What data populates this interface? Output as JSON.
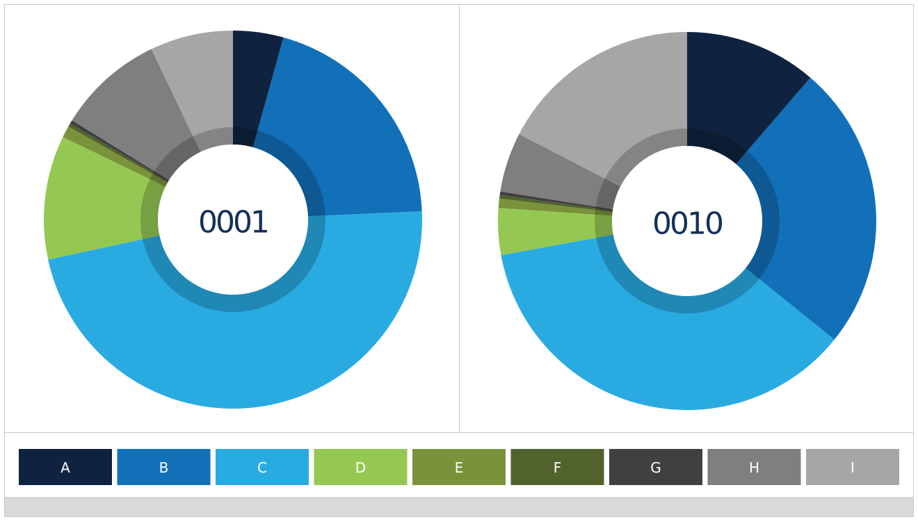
{
  "chart_data": [
    {
      "type": "donut",
      "center_label": "0001",
      "values": [
        4.3,
        20,
        47.3,
        10.6,
        1,
        0.3,
        0.3,
        9.1,
        7.1
      ]
    },
    {
      "type": "donut",
      "center_label": "0010",
      "values": [
        11.3,
        24.5,
        36.3,
        4,
        0.8,
        0.3,
        0.3,
        5.1,
        17.4
      ]
    }
  ],
  "legend": {
    "categories": [
      "A",
      "B",
      "C",
      "D",
      "E",
      "F",
      "G",
      "H",
      "I"
    ],
    "colors": [
      "#0f2340",
      "#1270b9",
      "#29abe2",
      "#95c853",
      "#7a923a",
      "#51622d",
      "#404040",
      "#7f7f7f",
      "#a6a6a6"
    ]
  }
}
